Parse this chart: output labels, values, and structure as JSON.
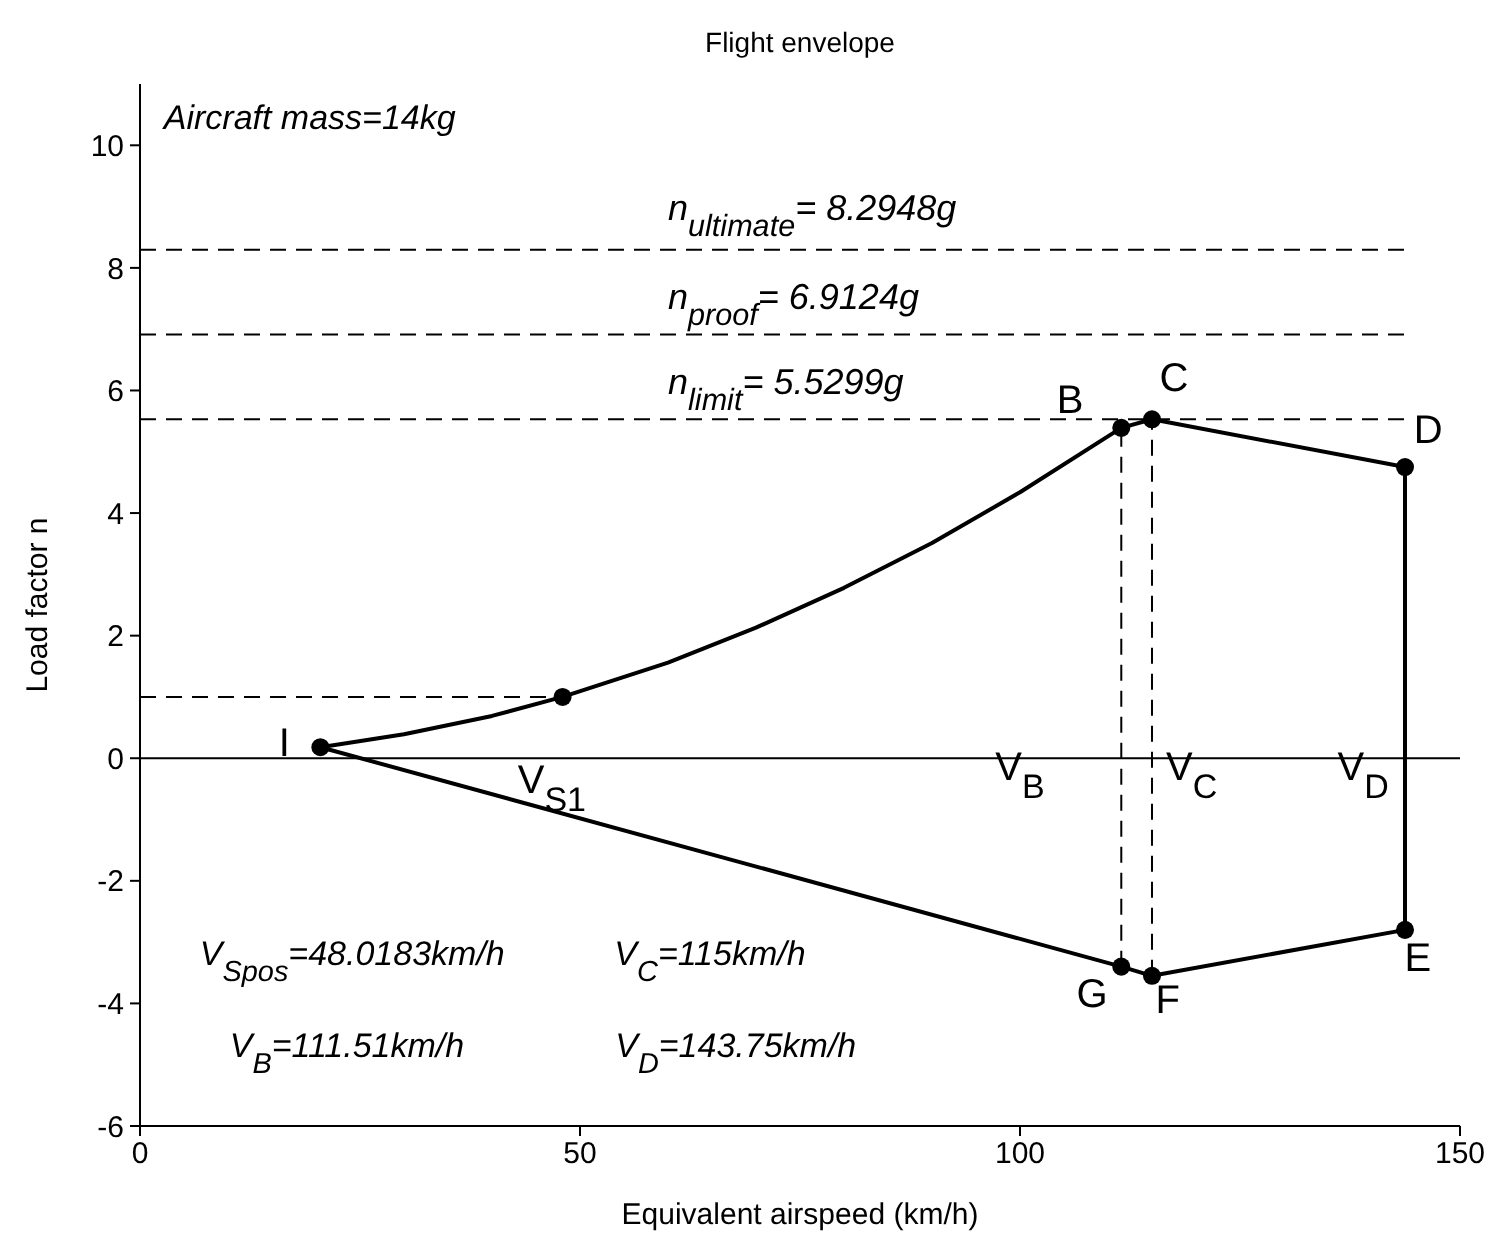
{
  "chart_data": {
    "type": "line",
    "title": "Flight envelope",
    "xlabel": "Equivalent airspeed (km/h)",
    "ylabel": "Load factor n",
    "xlim": [
      0,
      150
    ],
    "xticks": [
      0,
      50,
      100,
      150
    ],
    "ylim": [
      -6,
      11
    ],
    "yticks": [
      -6,
      -4,
      -2,
      0,
      2,
      4,
      6,
      8,
      10
    ],
    "grid": false,
    "series": [
      {
        "color": "#000000",
        "line_style": "solid",
        "x": [
          20.5,
          30,
          40,
          48.02,
          60,
          70,
          80,
          90,
          100,
          111.51,
          115,
          143.75
        ],
        "values": [
          0.18,
          0.39,
          0.69,
          1,
          1.56,
          2.13,
          2.78,
          3.51,
          4.34,
          5.39,
          5.53,
          4.75
        ]
      },
      {
        "color": "#000000",
        "line_style": "solid",
        "x": [
          20.5,
          111.51,
          115,
          143.75
        ],
        "values": [
          0.18,
          -3.4,
          -3.55,
          -2.8
        ]
      },
      {
        "color": "#000000",
        "line_style": "solid",
        "x": [
          143.75,
          143.75
        ],
        "values": [
          4.75,
          -2.8
        ]
      },
      {
        "color": "#000000",
        "line_style": "dashed",
        "x": [
          0,
          143.75
        ],
        "values": [
          8.2948,
          8.2948
        ]
      },
      {
        "color": "#000000",
        "line_style": "dashed",
        "x": [
          0,
          143.75
        ],
        "values": [
          6.9124,
          6.9124
        ]
      },
      {
        "color": "#000000",
        "line_style": "dashed",
        "x": [
          0,
          143.75
        ],
        "values": [
          5.5299,
          5.5299
        ]
      },
      {
        "color": "#000000",
        "line_style": "dashed",
        "x": [
          0,
          48.02
        ],
        "values": [
          1,
          1
        ]
      },
      {
        "color": "#000000",
        "line_style": "dashed",
        "x": [
          111.51,
          111.51
        ],
        "values": [
          -3.4,
          5.39
        ]
      },
      {
        "color": "#000000",
        "line_style": "dashed",
        "x": [
          115,
          115
        ],
        "values": [
          -3.55,
          5.53
        ]
      },
      {
        "type": "scatter",
        "color": "#000000",
        "marker": "circle",
        "x": [
          20.5,
          48.02,
          111.51,
          115,
          143.75,
          143.75,
          115,
          111.51
        ],
        "values": [
          0.18,
          1,
          5.39,
          5.53,
          4.75,
          -2.8,
          -3.55,
          -3.4
        ]
      }
    ],
    "ref_lines": [
      {
        "axis": "y",
        "value": 0,
        "color": "#000000",
        "line_style": "solid"
      }
    ],
    "annotations": [
      "Aircraft mass=14kg",
      "V$_{Spos}$=48.0183km/h",
      "V$_{C}$=115km/h",
      "V$_{B}$=111.51km/h",
      "V$_{D}$=143.75km/h",
      "n$_{ultimate}$= 8.2948g",
      "n$_{proof}$= 6.9124g",
      "n$_{limit}$= 5.5299g",
      "I",
      "B",
      "C",
      "D",
      "E",
      "F",
      "G",
      "V$_{B}$",
      "V$_{C}$",
      "V$_{D}$",
      "V$_{S1}$"
    ]
  }
}
